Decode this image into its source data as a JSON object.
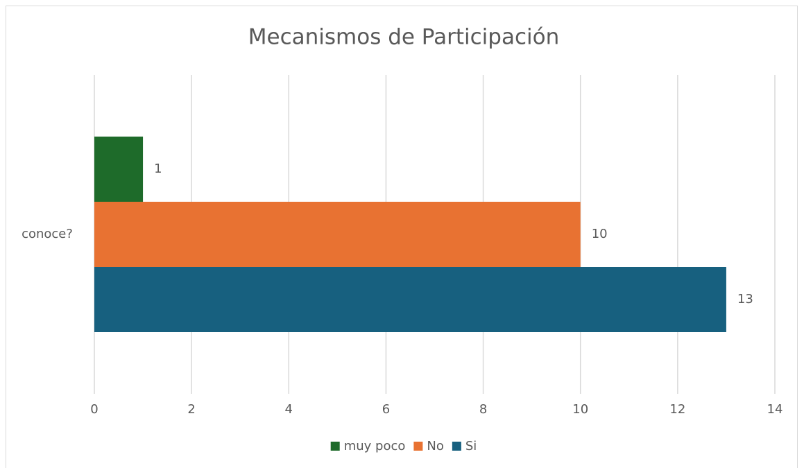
{
  "chart_data": {
    "type": "bar",
    "orientation": "horizontal",
    "title": "Mecanismos de Participación",
    "categories": [
      "conoce?"
    ],
    "series": [
      {
        "name": "muy poco",
        "color": "#1e6b2a",
        "values": [
          1
        ]
      },
      {
        "name": "No",
        "color": "#e87232",
        "values": [
          10
        ]
      },
      {
        "name": "Si",
        "color": "#17607f",
        "values": [
          13
        ]
      }
    ],
    "xlim": [
      0,
      14
    ],
    "xticks": [
      0,
      2,
      4,
      6,
      8,
      10,
      12,
      14
    ],
    "grid": true,
    "legend": "bottom"
  }
}
